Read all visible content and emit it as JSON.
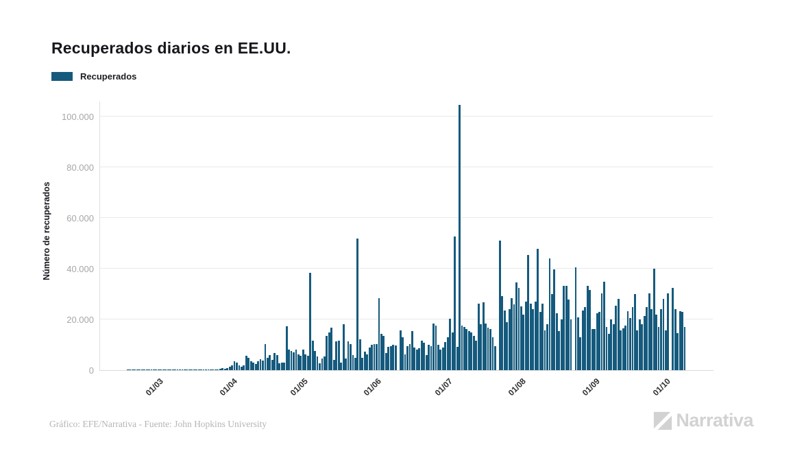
{
  "header": {
    "title": "Recuperados diarios en EE.UU."
  },
  "legend": {
    "label": "Recuperados"
  },
  "colors": {
    "bar": "#155a7d",
    "grid": "#e9e9e9",
    "axis_line": "#d9d9d9",
    "y_tick_text": "#a6a6a6",
    "x_tick_text": "#2f2f2f",
    "title_text": "#16161d",
    "footer_text": "#b5b5b5",
    "brand_gray": "#d2d2d2"
  },
  "y_axis": {
    "title": "Número de recuperados",
    "ticks": [
      {
        "label": "0",
        "value": 0
      },
      {
        "label": "20.000",
        "value": 20000
      },
      {
        "label": "40.000",
        "value": 40000
      },
      {
        "label": "60.000",
        "value": 60000
      },
      {
        "label": "80.000",
        "value": 80000
      },
      {
        "label": "100.000",
        "value": 100000
      }
    ]
  },
  "x_axis": {
    "ticks": [
      {
        "label": "01/03",
        "day": 13
      },
      {
        "label": "01/04",
        "day": 44
      },
      {
        "label": "01/05",
        "day": 74
      },
      {
        "label": "01/06",
        "day": 105
      },
      {
        "label": "01/07",
        "day": 135
      },
      {
        "label": "01/08",
        "day": 166
      },
      {
        "label": "01/09",
        "day": 197
      },
      {
        "label": "01/10",
        "day": 227
      }
    ]
  },
  "footer": {
    "credit": "Gráfico: EFE/Narrativa - Fuente: John Hopkins University",
    "brand": "Narrativa"
  },
  "chart_data": {
    "type": "bar",
    "title": "Recuperados diarios en EE.UU.",
    "ylabel": "Número de recuperados",
    "legend": [
      "Recuperados"
    ],
    "ylim": [
      0,
      110000
    ],
    "grid": "horizontal",
    "x_tick_labels": [
      "01/03",
      "01/04",
      "01/05",
      "01/06",
      "01/07",
      "01/08",
      "01/09",
      "01/10"
    ],
    "x_is_daily_from": "17/02",
    "series": [
      {
        "name": "Recuperados",
        "values": [
          5,
          8,
          10,
          12,
          10,
          15,
          12,
          18,
          15,
          20,
          18,
          22,
          25,
          30,
          35,
          40,
          38,
          45,
          50,
          55,
          60,
          58,
          65,
          70,
          75,
          80,
          85,
          90,
          100,
          110,
          120,
          130,
          140,
          150,
          160,
          170,
          180,
          190,
          280,
          450,
          720,
          650,
          900,
          1300,
          2000,
          3600,
          3100,
          1800,
          1400,
          2000,
          5600,
          4900,
          3600,
          3100,
          2500,
          3600,
          4300,
          3900,
          10400,
          4900,
          5900,
          4000,
          6800,
          5900,
          2700,
          3100,
          2900,
          17300,
          8100,
          7700,
          7000,
          8100,
          6100,
          5600,
          8100,
          6100,
          5600,
          38300,
          11700,
          7700,
          5400,
          2700,
          4500,
          5400,
          13500,
          14900,
          16700,
          4100,
          11300,
          11700,
          3000,
          18200,
          4500,
          11300,
          10400,
          5900,
          5000,
          51800,
          12200,
          5000,
          7200,
          6300,
          9000,
          9900,
          10400,
          10400,
          28400,
          14400,
          13500,
          6800,
          9200,
          9500,
          9900,
          9700,
          0,
          15800,
          13100,
          6300,
          9500,
          10400,
          15300,
          9000,
          8100,
          8600,
          11700,
          10800,
          5900,
          9900,
          9500,
          18500,
          17600,
          9900,
          8100,
          9000,
          11000,
          13000,
          20300,
          15000,
          52600,
          9200,
          104600,
          17600,
          16900,
          16200,
          15500,
          14900,
          13500,
          11700,
          26100,
          18000,
          26800,
          18500,
          16700,
          16200,
          13000,
          9500,
          0,
          51000,
          29300,
          23400,
          18900,
          24000,
          28400,
          26000,
          34600,
          32400,
          25200,
          22000,
          27000,
          45400,
          26100,
          24000,
          27000,
          47900,
          23000,
          26100,
          15700,
          18000,
          44000,
          30000,
          39800,
          22500,
          15300,
          20000,
          33300,
          33300,
          27900,
          20000,
          0,
          40500,
          20700,
          13000,
          23400,
          25000,
          33300,
          31500,
          16200,
          16200,
          22500,
          23000,
          30200,
          35000,
          16900,
          14200,
          20000,
          18000,
          25500,
          28200,
          15600,
          16500,
          17500,
          23200,
          20500,
          25000,
          30000,
          15600,
          20100,
          18000,
          21400,
          25000,
          30400,
          24000,
          39900,
          22000,
          17000,
          24000,
          28200,
          15600,
          30400,
          0,
          32500,
          24100,
          14700,
          23200,
          23000,
          17000
        ]
      }
    ]
  }
}
